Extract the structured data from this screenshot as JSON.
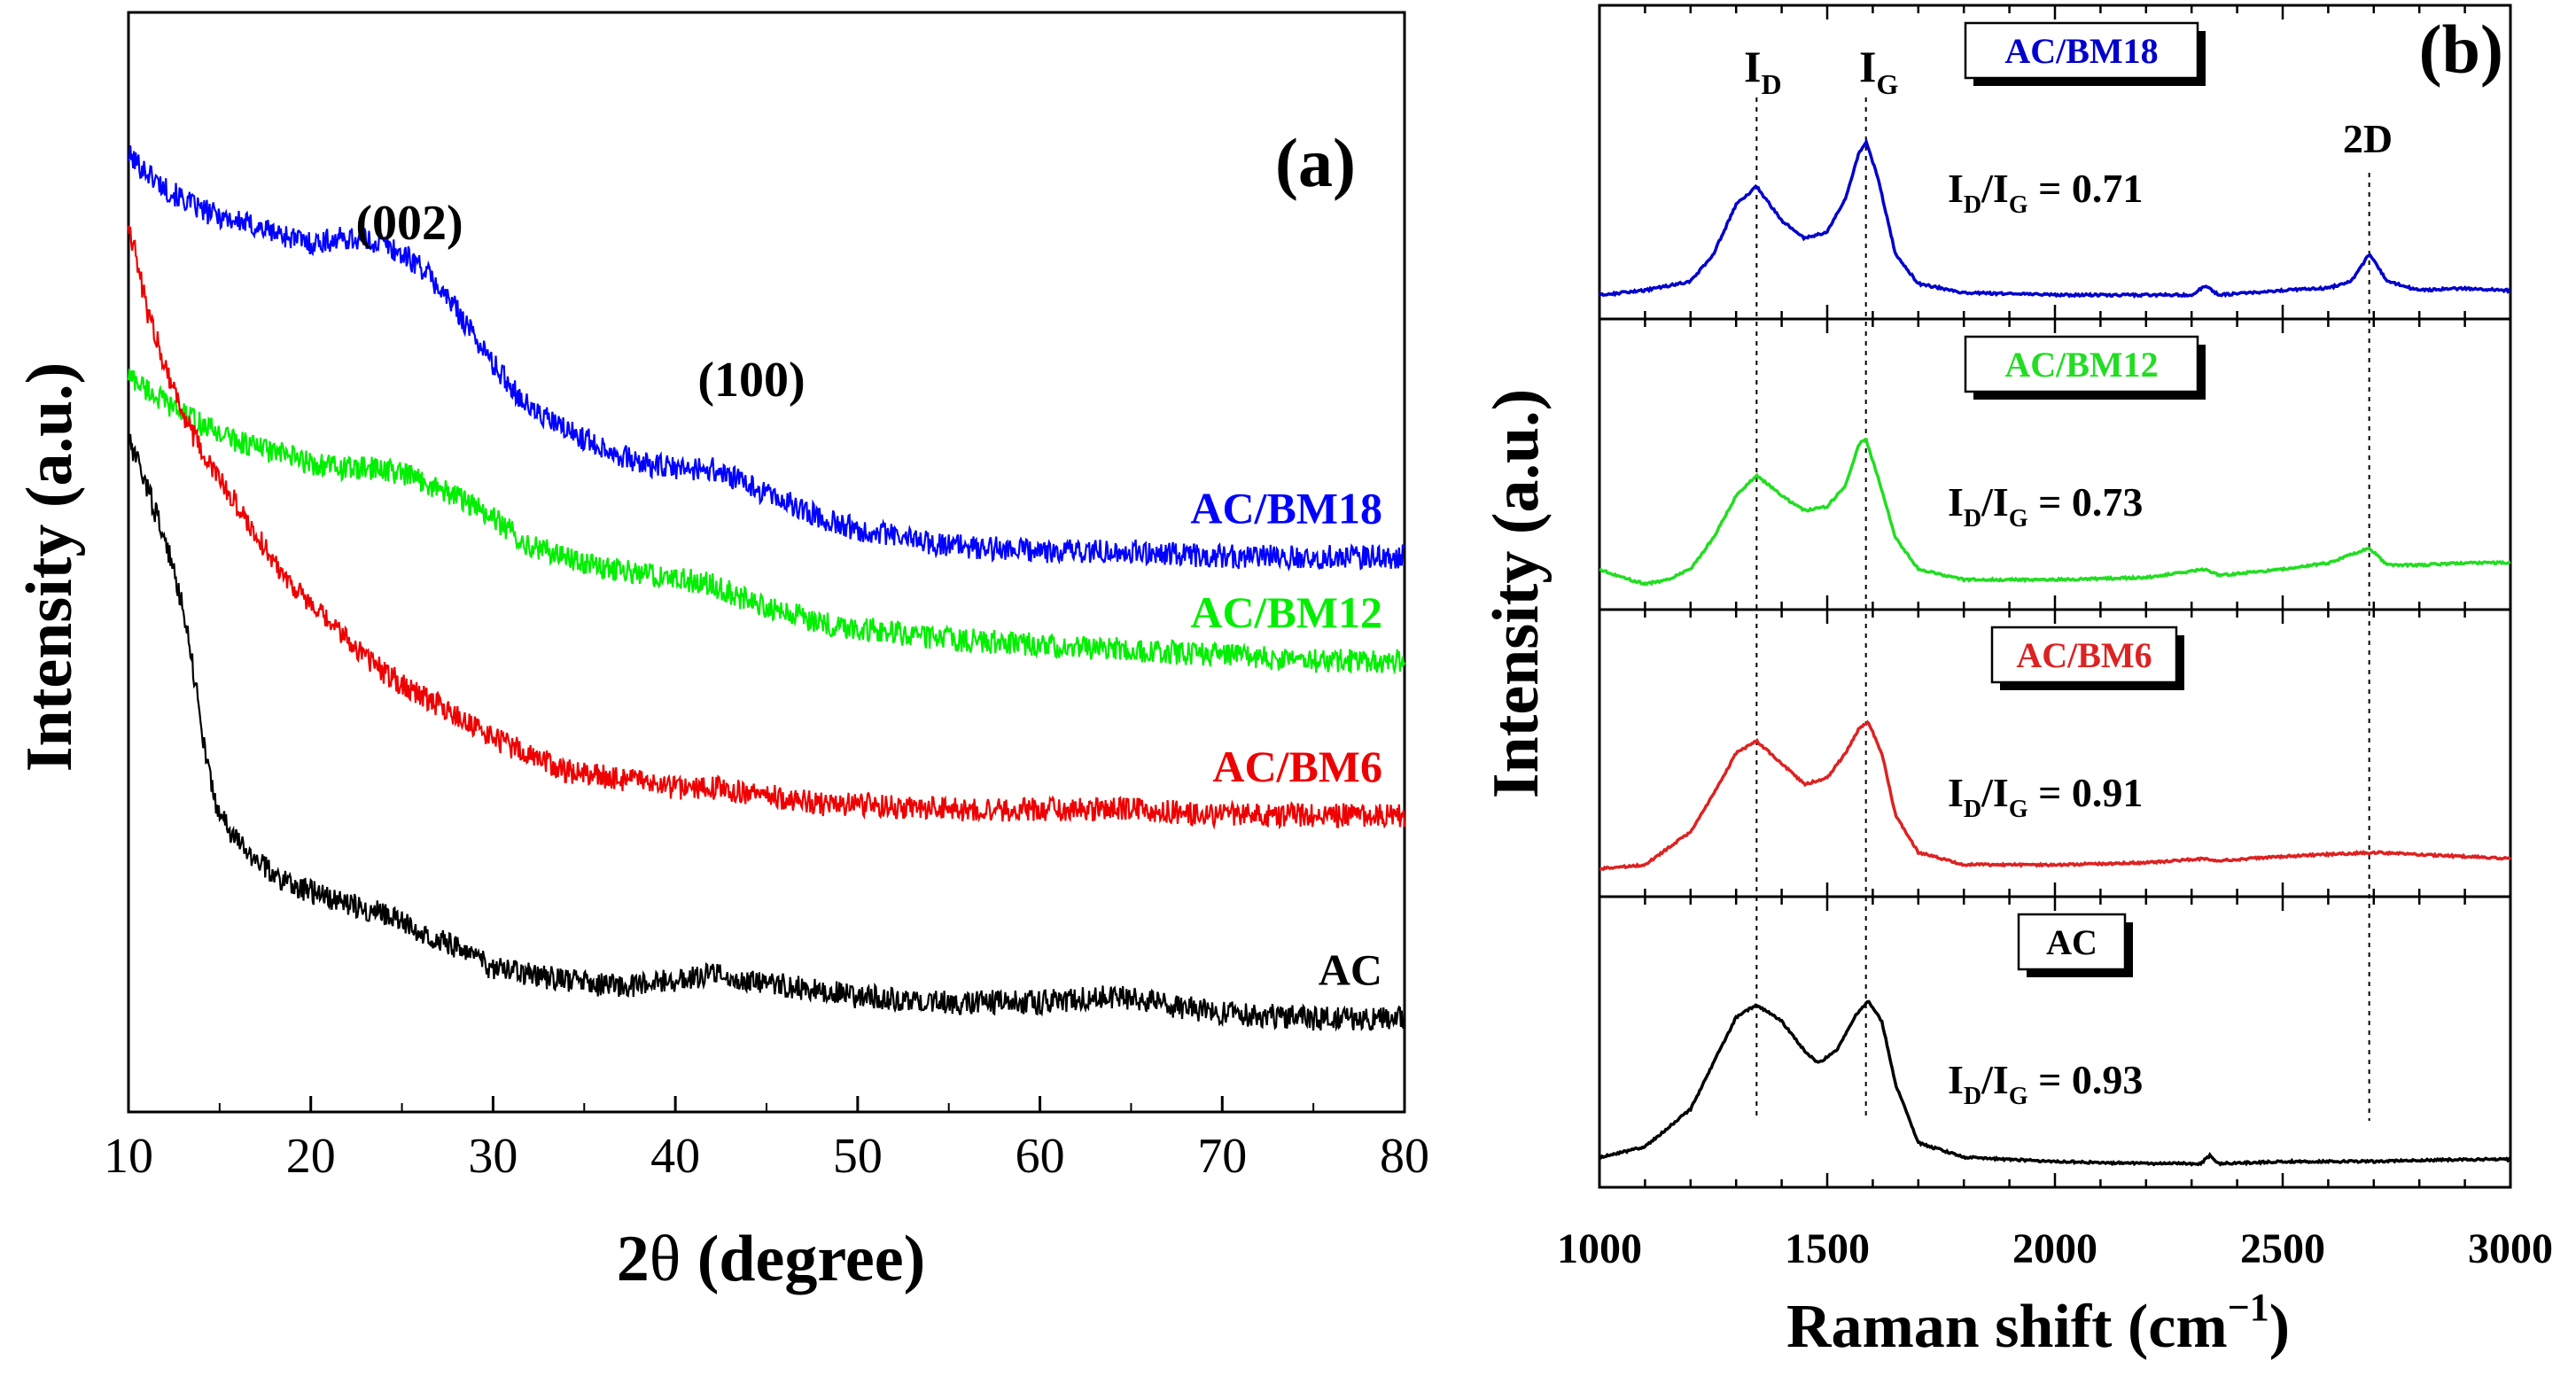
{
  "chart_data": [
    {
      "type": "line",
      "panel": "(a)",
      "xlabel_prefix": "2",
      "xlabel_theta": "θ",
      "xlabel_rest": " (degree)",
      "ylabel": "Intensity (a.u.)",
      "xlim": [
        10,
        80
      ],
      "ylim": [
        0,
        1
      ],
      "xticks": [
        "10",
        "20",
        "30",
        "40",
        "50",
        "60",
        "70",
        "80"
      ],
      "annotations": [
        "(002)",
        "(100)"
      ],
      "series": [
        {
          "name": "AC/BM18",
          "color": "#0000ff",
          "x": [
            10,
            12,
            14,
            16,
            18,
            20,
            22,
            24,
            26,
            28,
            30,
            32,
            34,
            36,
            38,
            40,
            42,
            44,
            46,
            48,
            50,
            55,
            60,
            65,
            70,
            75,
            80
          ],
          "y": [
            0.87,
            0.84,
            0.82,
            0.81,
            0.8,
            0.79,
            0.795,
            0.79,
            0.77,
            0.73,
            0.68,
            0.64,
            0.62,
            0.605,
            0.59,
            0.585,
            0.585,
            0.57,
            0.555,
            0.54,
            0.53,
            0.515,
            0.51,
            0.51,
            0.505,
            0.505,
            0.505
          ]
        },
        {
          "name": "AC/BM12",
          "color": "#00ee00",
          "x": [
            10,
            12,
            14,
            16,
            18,
            20,
            22,
            24,
            26,
            28,
            30,
            32,
            34,
            36,
            38,
            40,
            42,
            44,
            46,
            48,
            50,
            55,
            60,
            65,
            70,
            75,
            80
          ],
          "y": [
            0.67,
            0.645,
            0.625,
            0.61,
            0.6,
            0.59,
            0.585,
            0.585,
            0.575,
            0.56,
            0.54,
            0.515,
            0.505,
            0.495,
            0.49,
            0.485,
            0.48,
            0.465,
            0.455,
            0.445,
            0.44,
            0.43,
            0.425,
            0.42,
            0.415,
            0.41,
            0.41
          ]
        },
        {
          "name": "AC/BM6",
          "color": "#ee0000",
          "x": [
            10,
            11,
            12,
            13,
            14,
            15,
            16,
            18,
            20,
            22,
            24,
            26,
            28,
            30,
            32,
            34,
            36,
            38,
            40,
            42,
            44,
            46,
            48,
            50,
            55,
            60,
            65,
            70,
            75,
            80
          ],
          "y": [
            0.81,
            0.73,
            0.68,
            0.635,
            0.6,
            0.575,
            0.55,
            0.5,
            0.46,
            0.43,
            0.4,
            0.38,
            0.36,
            0.34,
            0.325,
            0.31,
            0.305,
            0.3,
            0.295,
            0.295,
            0.29,
            0.285,
            0.28,
            0.28,
            0.275,
            0.275,
            0.275,
            0.27,
            0.27,
            0.27
          ]
        },
        {
          "name": "AC",
          "color": "#000000",
          "x": [
            10,
            11,
            12,
            13,
            13.5,
            14,
            14.5,
            15,
            16,
            18,
            20,
            22,
            24,
            26,
            28,
            30,
            32,
            34,
            36,
            38,
            40,
            42,
            44,
            46,
            50,
            55,
            60,
            64,
            66,
            70,
            75,
            80
          ],
          "y": [
            0.61,
            0.57,
            0.52,
            0.46,
            0.41,
            0.35,
            0.3,
            0.27,
            0.245,
            0.215,
            0.2,
            0.19,
            0.18,
            0.165,
            0.15,
            0.13,
            0.125,
            0.12,
            0.115,
            0.115,
            0.12,
            0.125,
            0.12,
            0.115,
            0.105,
            0.1,
            0.1,
            0.105,
            0.1,
            0.09,
            0.085,
            0.085
          ]
        }
      ]
    },
    {
      "type": "line",
      "panel": "(b)",
      "xlabel": "Raman shift (cm",
      "xlabel_sup": "−1",
      "xlabel_close": ")",
      "ylabel": "Intensity (a.u.)",
      "xlim": [
        1000,
        3000
      ],
      "xticks": [
        "1000",
        "1500",
        "2000",
        "2500",
        "3000"
      ],
      "peak_labels": {
        "d": "I",
        "d_sub": "D",
        "g": "I",
        "g_sub": "G",
        "two_d": "2D"
      },
      "reference_lines_x": [
        1345,
        1585,
        2690
      ],
      "series": [
        {
          "name": "AC/BM18",
          "color": "#0000cc",
          "ratio_value": "= 0.71",
          "x": [
            1000,
            1100,
            1200,
            1250,
            1300,
            1345,
            1400,
            1450,
            1500,
            1540,
            1570,
            1585,
            1610,
            1650,
            1700,
            1800,
            2000,
            2200,
            2300,
            2330,
            2360,
            2500,
            2600,
            2650,
            2690,
            2730,
            2800,
            2900,
            3000
          ],
          "y": [
            0.02,
            0.04,
            0.08,
            0.2,
            0.42,
            0.5,
            0.35,
            0.27,
            0.3,
            0.45,
            0.65,
            0.7,
            0.55,
            0.2,
            0.07,
            0.03,
            0.02,
            0.02,
            0.02,
            0.06,
            0.02,
            0.04,
            0.05,
            0.08,
            0.2,
            0.08,
            0.04,
            0.05,
            0.04
          ]
        },
        {
          "name": "AC/BM12",
          "color": "#22dd22",
          "ratio_value": "= 0.73",
          "x": [
            1000,
            1050,
            1100,
            1150,
            1200,
            1250,
            1300,
            1345,
            1400,
            1450,
            1500,
            1540,
            1570,
            1585,
            1610,
            1650,
            1700,
            1800,
            2000,
            2200,
            2330,
            2360,
            2500,
            2600,
            2690,
            2730,
            2800,
            2900,
            3000
          ],
          "y": [
            0.1,
            0.06,
            0.03,
            0.05,
            0.1,
            0.25,
            0.45,
            0.55,
            0.45,
            0.38,
            0.4,
            0.5,
            0.7,
            0.72,
            0.55,
            0.25,
            0.1,
            0.05,
            0.05,
            0.06,
            0.1,
            0.07,
            0.1,
            0.13,
            0.2,
            0.12,
            0.12,
            0.13,
            0.13
          ]
        },
        {
          "name": "AC/BM6",
          "color": "#dd2222",
          "ratio_value": "= 0.91",
          "x": [
            1000,
            1100,
            1200,
            1250,
            1300,
            1345,
            1400,
            1450,
            1500,
            1540,
            1570,
            1590,
            1620,
            1650,
            1700,
            1800,
            2000,
            2200,
            2330,
            2360,
            2500,
            2700,
            2900,
            3000
          ],
          "y": [
            0.04,
            0.06,
            0.22,
            0.4,
            0.6,
            0.66,
            0.55,
            0.45,
            0.48,
            0.6,
            0.72,
            0.75,
            0.6,
            0.3,
            0.12,
            0.06,
            0.06,
            0.07,
            0.09,
            0.08,
            0.1,
            0.12,
            0.1,
            0.09
          ]
        },
        {
          "name": "AC",
          "color": "#000000",
          "ratio_value": "= 0.93",
          "x": [
            1000,
            1100,
            1200,
            1250,
            1300,
            1345,
            1400,
            1450,
            1480,
            1520,
            1560,
            1590,
            1620,
            1650,
            1700,
            1800,
            2000,
            2200,
            2320,
            2340,
            2360,
            2500,
            2700,
            2900,
            3000
          ],
          "y": [
            0.05,
            0.1,
            0.28,
            0.5,
            0.72,
            0.78,
            0.7,
            0.56,
            0.5,
            0.56,
            0.72,
            0.8,
            0.7,
            0.4,
            0.12,
            0.05,
            0.03,
            0.02,
            0.02,
            0.06,
            0.02,
            0.03,
            0.03,
            0.04,
            0.04
          ]
        }
      ]
    }
  ]
}
